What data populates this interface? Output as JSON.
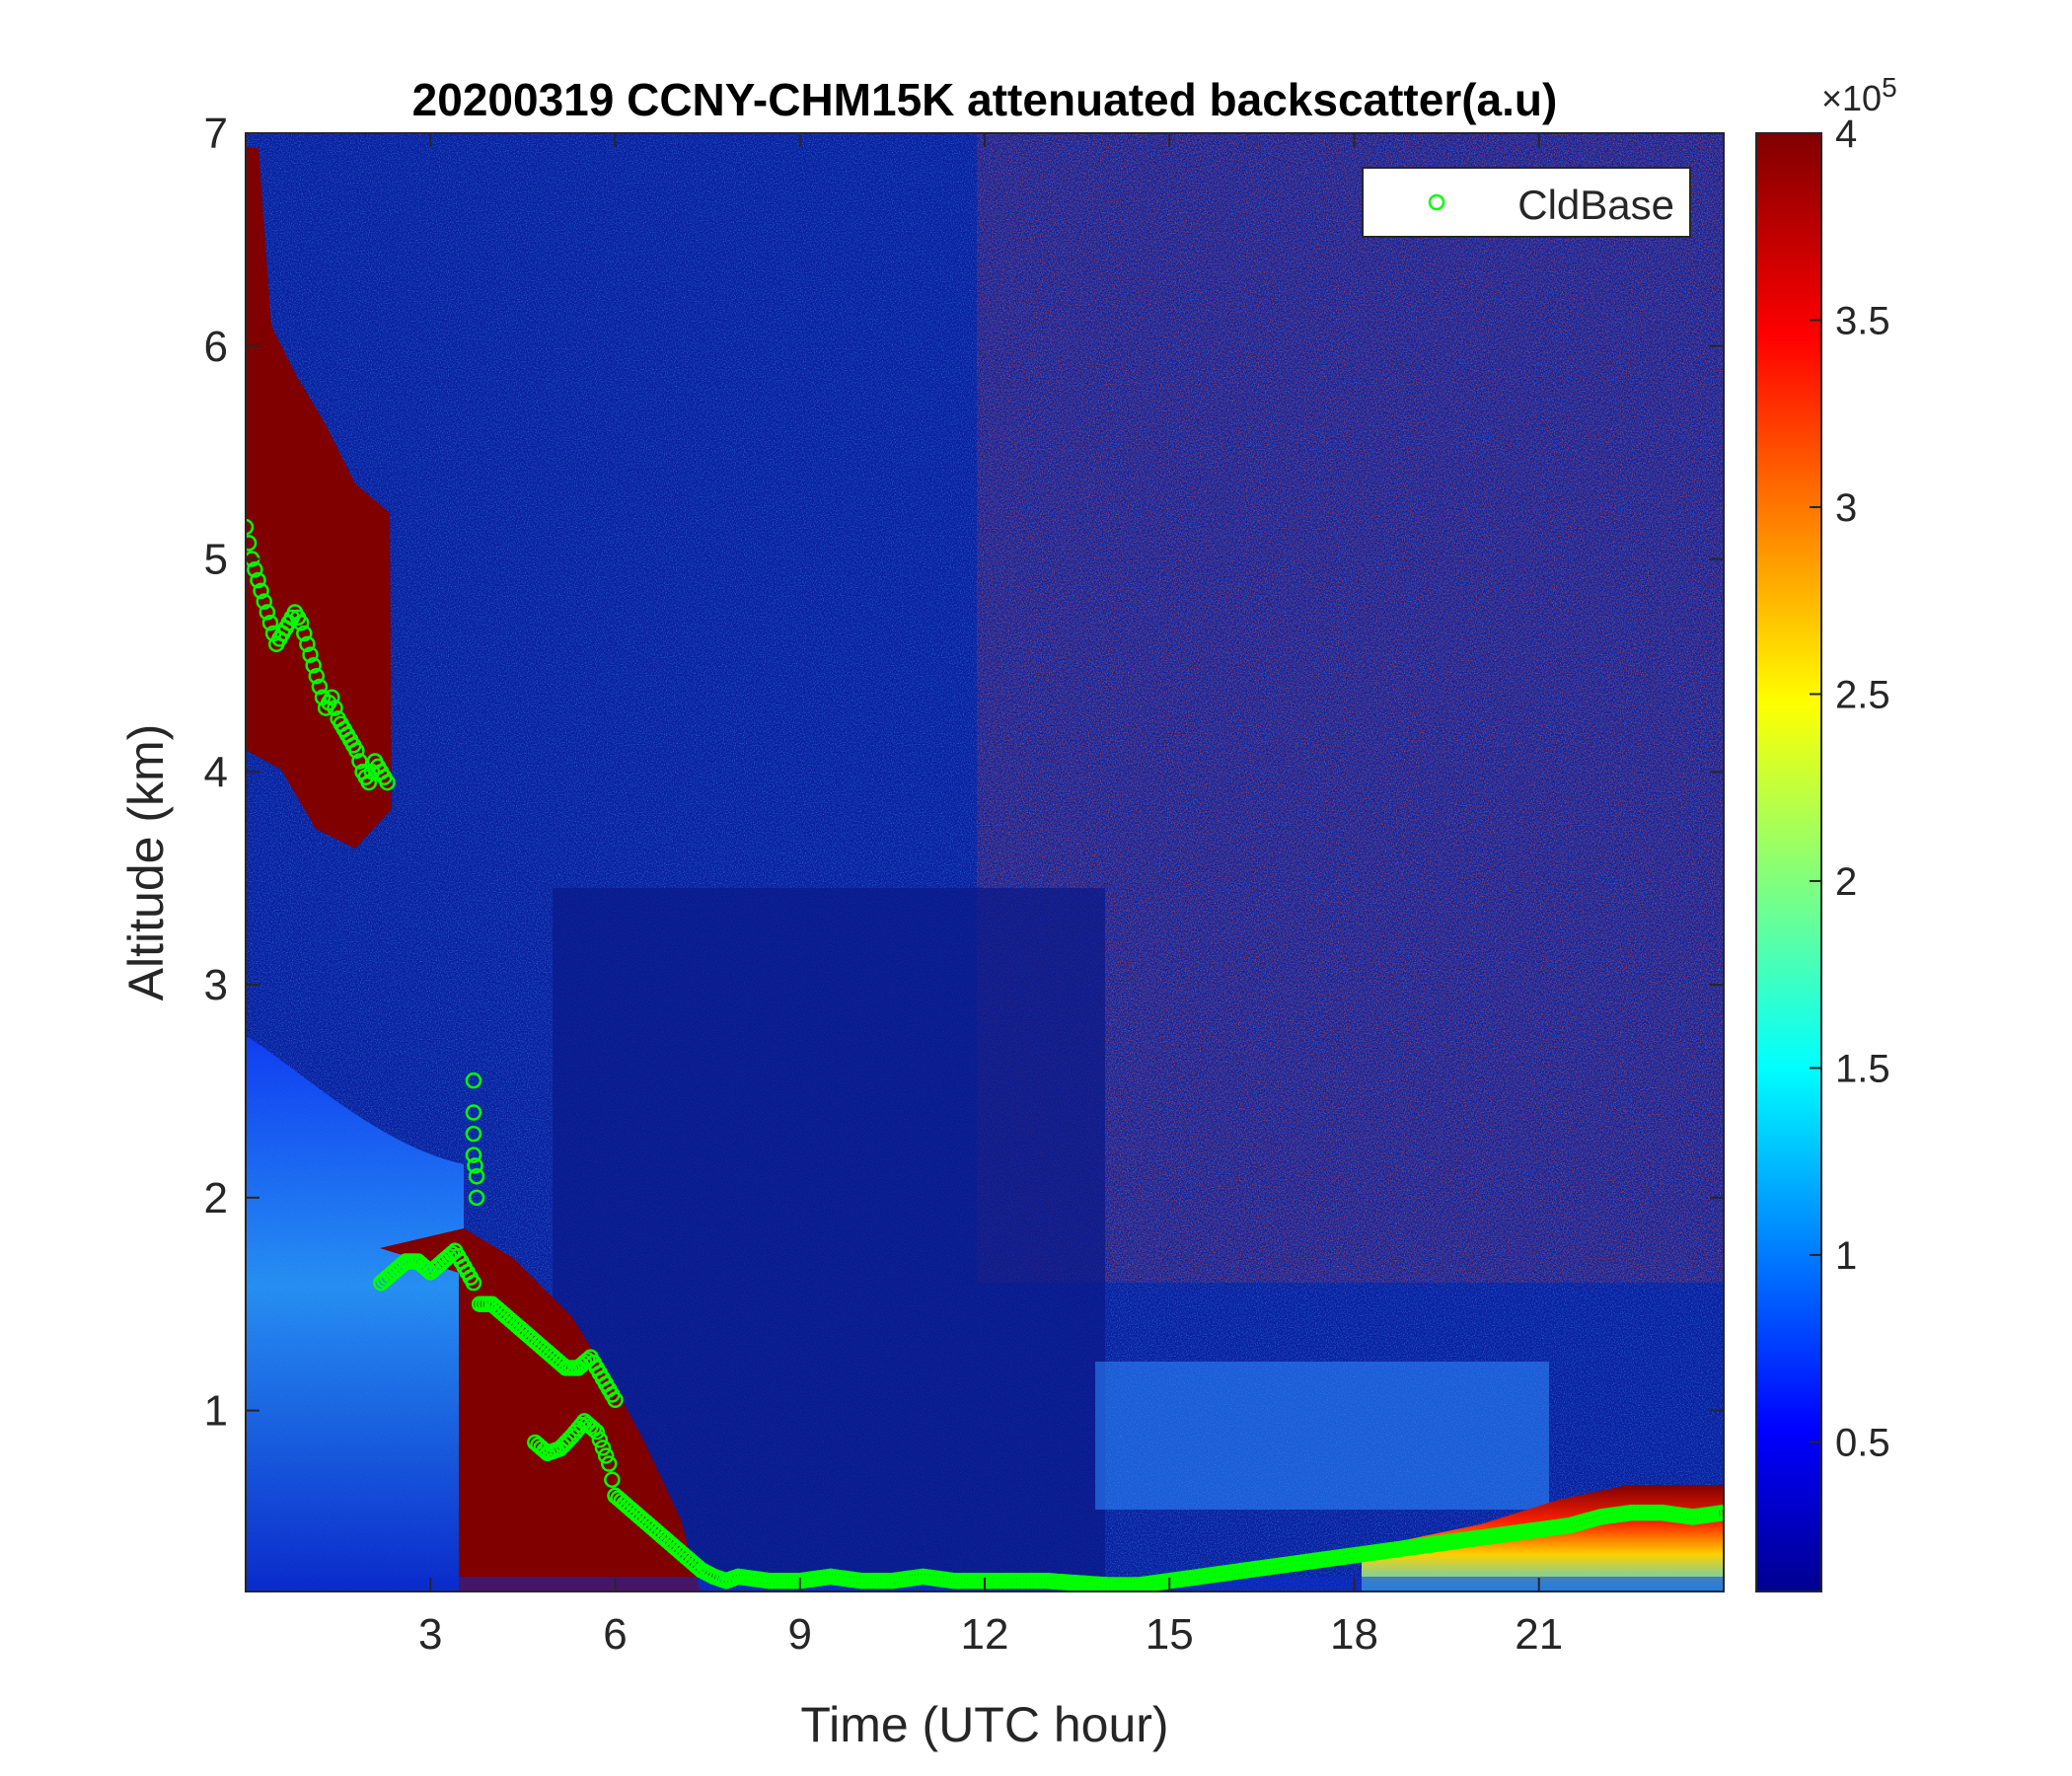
{
  "chart_data": {
    "type": "heatmap",
    "title": "20200319 CCNY-CHM15K attenuated backscatter(a.u)",
    "xlabel": "Time (UTC hour)",
    "ylabel": "Altitude (km)",
    "xlim": [
      0,
      24
    ],
    "ylim": [
      0.15,
      7
    ],
    "x_ticks": [
      3,
      6,
      9,
      12,
      15,
      18,
      21
    ],
    "x_tick_labels": [
      "3",
      "6",
      "9",
      "12",
      "15",
      "18",
      "21"
    ],
    "y_ticks": [
      1,
      2,
      3,
      4,
      5,
      6,
      7
    ],
    "y_tick_labels": [
      "1",
      "2",
      "3",
      "4",
      "5",
      "6",
      "7"
    ],
    "colorbar": {
      "colormap": "jet",
      "clim": [
        10000,
        400000
      ],
      "ticks": [
        50000,
        100000,
        150000,
        200000,
        250000,
        300000,
        350000,
        400000
      ],
      "tick_labels": [
        "0.5",
        "1",
        "1.5",
        "2",
        "2.5",
        "3",
        "3.5",
        "4"
      ],
      "exponent_label": "×10",
      "exponent_power": "5"
    },
    "heatmap_description_regions": [
      {
        "time": [
          0,
          2.4
        ],
        "altitude": [
          4.0,
          7.0
        ],
        "level": "high"
      },
      {
        "time": [
          3.6,
          6.2
        ],
        "altitude": [
          0.15,
          1.6
        ],
        "level": "high"
      },
      {
        "time": [
          12.5,
          24
        ],
        "altitude": [
          1.5,
          7.0
        ],
        "level": "noisy-high"
      },
      {
        "time": [
          21.5,
          24
        ],
        "altitude": [
          0.15,
          0.5
        ],
        "level": "high"
      }
    ],
    "series": [
      {
        "name": "CldBase",
        "marker": "circle-open",
        "color": "#00ff00",
        "x": [
          0.0,
          0.1,
          0.2,
          0.3,
          0.4,
          0.5,
          0.6,
          0.7,
          0.8,
          0.9,
          1.0,
          1.1,
          1.2,
          1.3,
          1.4,
          1.5,
          1.6,
          1.7,
          1.8,
          1.9,
          2.0,
          2.1,
          2.2,
          2.3,
          2.2,
          2.4,
          2.6,
          2.8,
          3.0,
          3.2,
          3.4,
          3.5,
          3.6,
          3.7,
          3.7,
          3.7,
          3.7,
          3.7,
          3.75,
          3.75,
          3.8,
          4.0,
          4.2,
          4.4,
          4.6,
          4.8,
          5.0,
          5.2,
          5.4,
          5.6,
          5.8,
          6.0,
          4.7,
          4.9,
          5.1,
          5.3,
          5.5,
          5.7,
          5.9,
          6.0,
          6.2,
          6.4,
          6.6,
          6.8,
          7.0,
          7.2,
          7.4,
          7.6,
          7.8,
          8.0,
          8.5,
          9.0,
          9.5,
          10.0,
          10.5,
          11.0,
          11.5,
          12.0,
          12.5,
          13.0,
          13.5,
          14.0,
          14.5,
          15.0,
          15.5,
          16.0,
          16.5,
          17.0,
          17.5,
          18.0,
          18.5,
          19.0,
          19.5,
          20.0,
          20.5,
          21.0,
          21.5,
          22.0,
          22.5,
          23.0,
          23.5,
          24.0
        ],
        "y": [
          5.15,
          5.0,
          4.9,
          4.8,
          4.7,
          4.6,
          4.65,
          4.7,
          4.75,
          4.7,
          4.6,
          4.5,
          4.4,
          4.3,
          4.35,
          4.25,
          4.2,
          4.15,
          4.1,
          4.0,
          3.95,
          4.05,
          4.0,
          3.95,
          1.6,
          1.65,
          1.7,
          1.7,
          1.65,
          1.7,
          1.75,
          1.7,
          1.65,
          1.6,
          2.55,
          2.4,
          2.3,
          2.2,
          2.1,
          2.0,
          1.5,
          1.5,
          1.45,
          1.4,
          1.35,
          1.3,
          1.25,
          1.2,
          1.2,
          1.25,
          1.15,
          1.05,
          0.85,
          0.8,
          0.82,
          0.88,
          0.95,
          0.9,
          0.75,
          0.6,
          0.55,
          0.5,
          0.45,
          0.4,
          0.35,
          0.3,
          0.25,
          0.22,
          0.2,
          0.22,
          0.2,
          0.2,
          0.22,
          0.2,
          0.2,
          0.22,
          0.2,
          0.2,
          0.2,
          0.2,
          0.19,
          0.18,
          0.18,
          0.2,
          0.22,
          0.24,
          0.26,
          0.28,
          0.3,
          0.32,
          0.34,
          0.36,
          0.38,
          0.4,
          0.42,
          0.44,
          0.46,
          0.5,
          0.52,
          0.52,
          0.5,
          0.52
        ]
      }
    ],
    "legend": {
      "position": "top-right",
      "entries": [
        "CldBase"
      ]
    },
    "grid": false
  }
}
